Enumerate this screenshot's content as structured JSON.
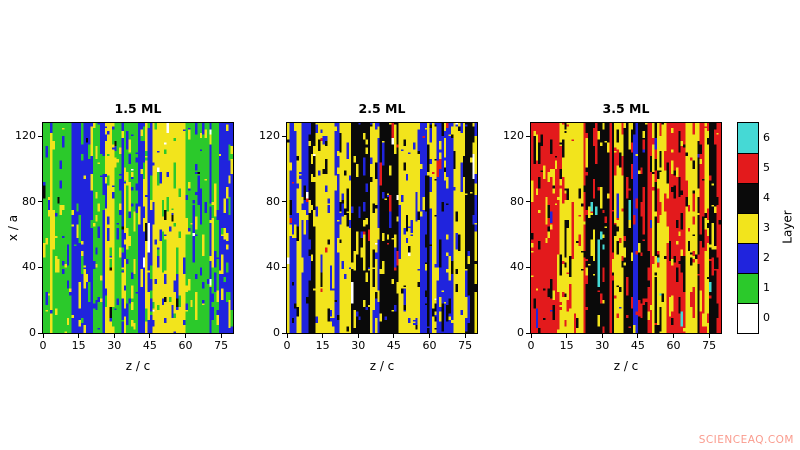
{
  "figure": {
    "background": "#ffffff",
    "watermark": {
      "text": "SCIENCEAQ.COM",
      "color": "#f98a7a"
    }
  },
  "chart_data": {
    "type": "heatmap",
    "description": "Three layer-occupancy maps (surface height maps) at coverages 1.5, 2.5 and 3.5 monolayers; vertically elongated stripe domains of discrete layer numbers 0-6.",
    "xlabel": "z / c",
    "ylabel": "x / a",
    "xticks": [
      0,
      15,
      30,
      45,
      60,
      75
    ],
    "yticks": [
      0,
      40,
      80,
      120
    ],
    "xlim": [
      0,
      80
    ],
    "ylim": [
      0,
      128
    ],
    "grid_cols": 80,
    "grid_rows": 128,
    "colorbar": {
      "label": "Layer",
      "entries": [
        {
          "value": 6,
          "color": "#45d9d5"
        },
        {
          "value": 5,
          "color": "#e31a1c"
        },
        {
          "value": 4,
          "color": "#0a0a0a"
        },
        {
          "value": 3,
          "color": "#f2e41c"
        },
        {
          "value": 2,
          "color": "#2024dd"
        },
        {
          "value": 1,
          "color": "#2bc92b"
        },
        {
          "value": 0,
          "color": "#ffffff"
        }
      ]
    },
    "panels": [
      {
        "title": "1.5 ML",
        "seed": 1015,
        "layer_mix": {
          "0": 0.02,
          "1": 0.27,
          "2": 0.36,
          "3": 0.32,
          "4": 0.03
        }
      },
      {
        "title": "2.5 ML",
        "seed": 2025,
        "layer_mix": {
          "0": 0.02,
          "2": 0.24,
          "3": 0.45,
          "4": 0.26,
          "5": 0.03
        }
      },
      {
        "title": "3.5 ML",
        "seed": 3035,
        "layer_mix": {
          "2": 0.02,
          "3": 0.3,
          "4": 0.27,
          "5": 0.38,
          "6": 0.03
        }
      }
    ]
  }
}
